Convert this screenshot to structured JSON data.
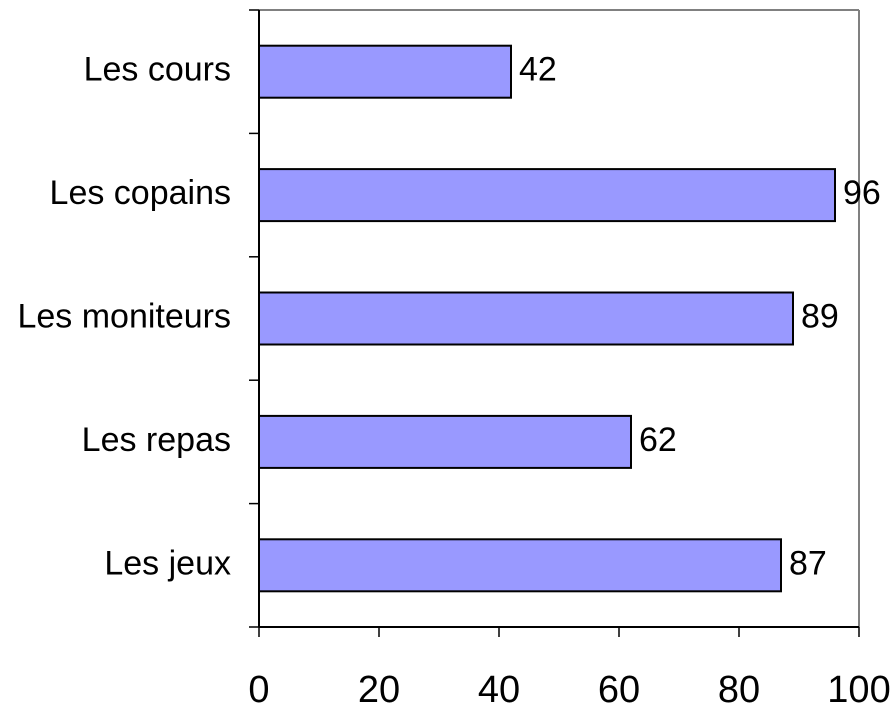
{
  "chart_data": {
    "type": "bar",
    "orientation": "horizontal",
    "categories": [
      "Les cours",
      "Les copains",
      "Les moniteurs",
      "Les repas",
      "Les jeux"
    ],
    "values": [
      42,
      96,
      89,
      62,
      87
    ],
    "color": "#9999ff",
    "xlim": [
      0,
      100
    ],
    "xticks": [
      0,
      20,
      40,
      60,
      80,
      100
    ],
    "grid": false
  }
}
